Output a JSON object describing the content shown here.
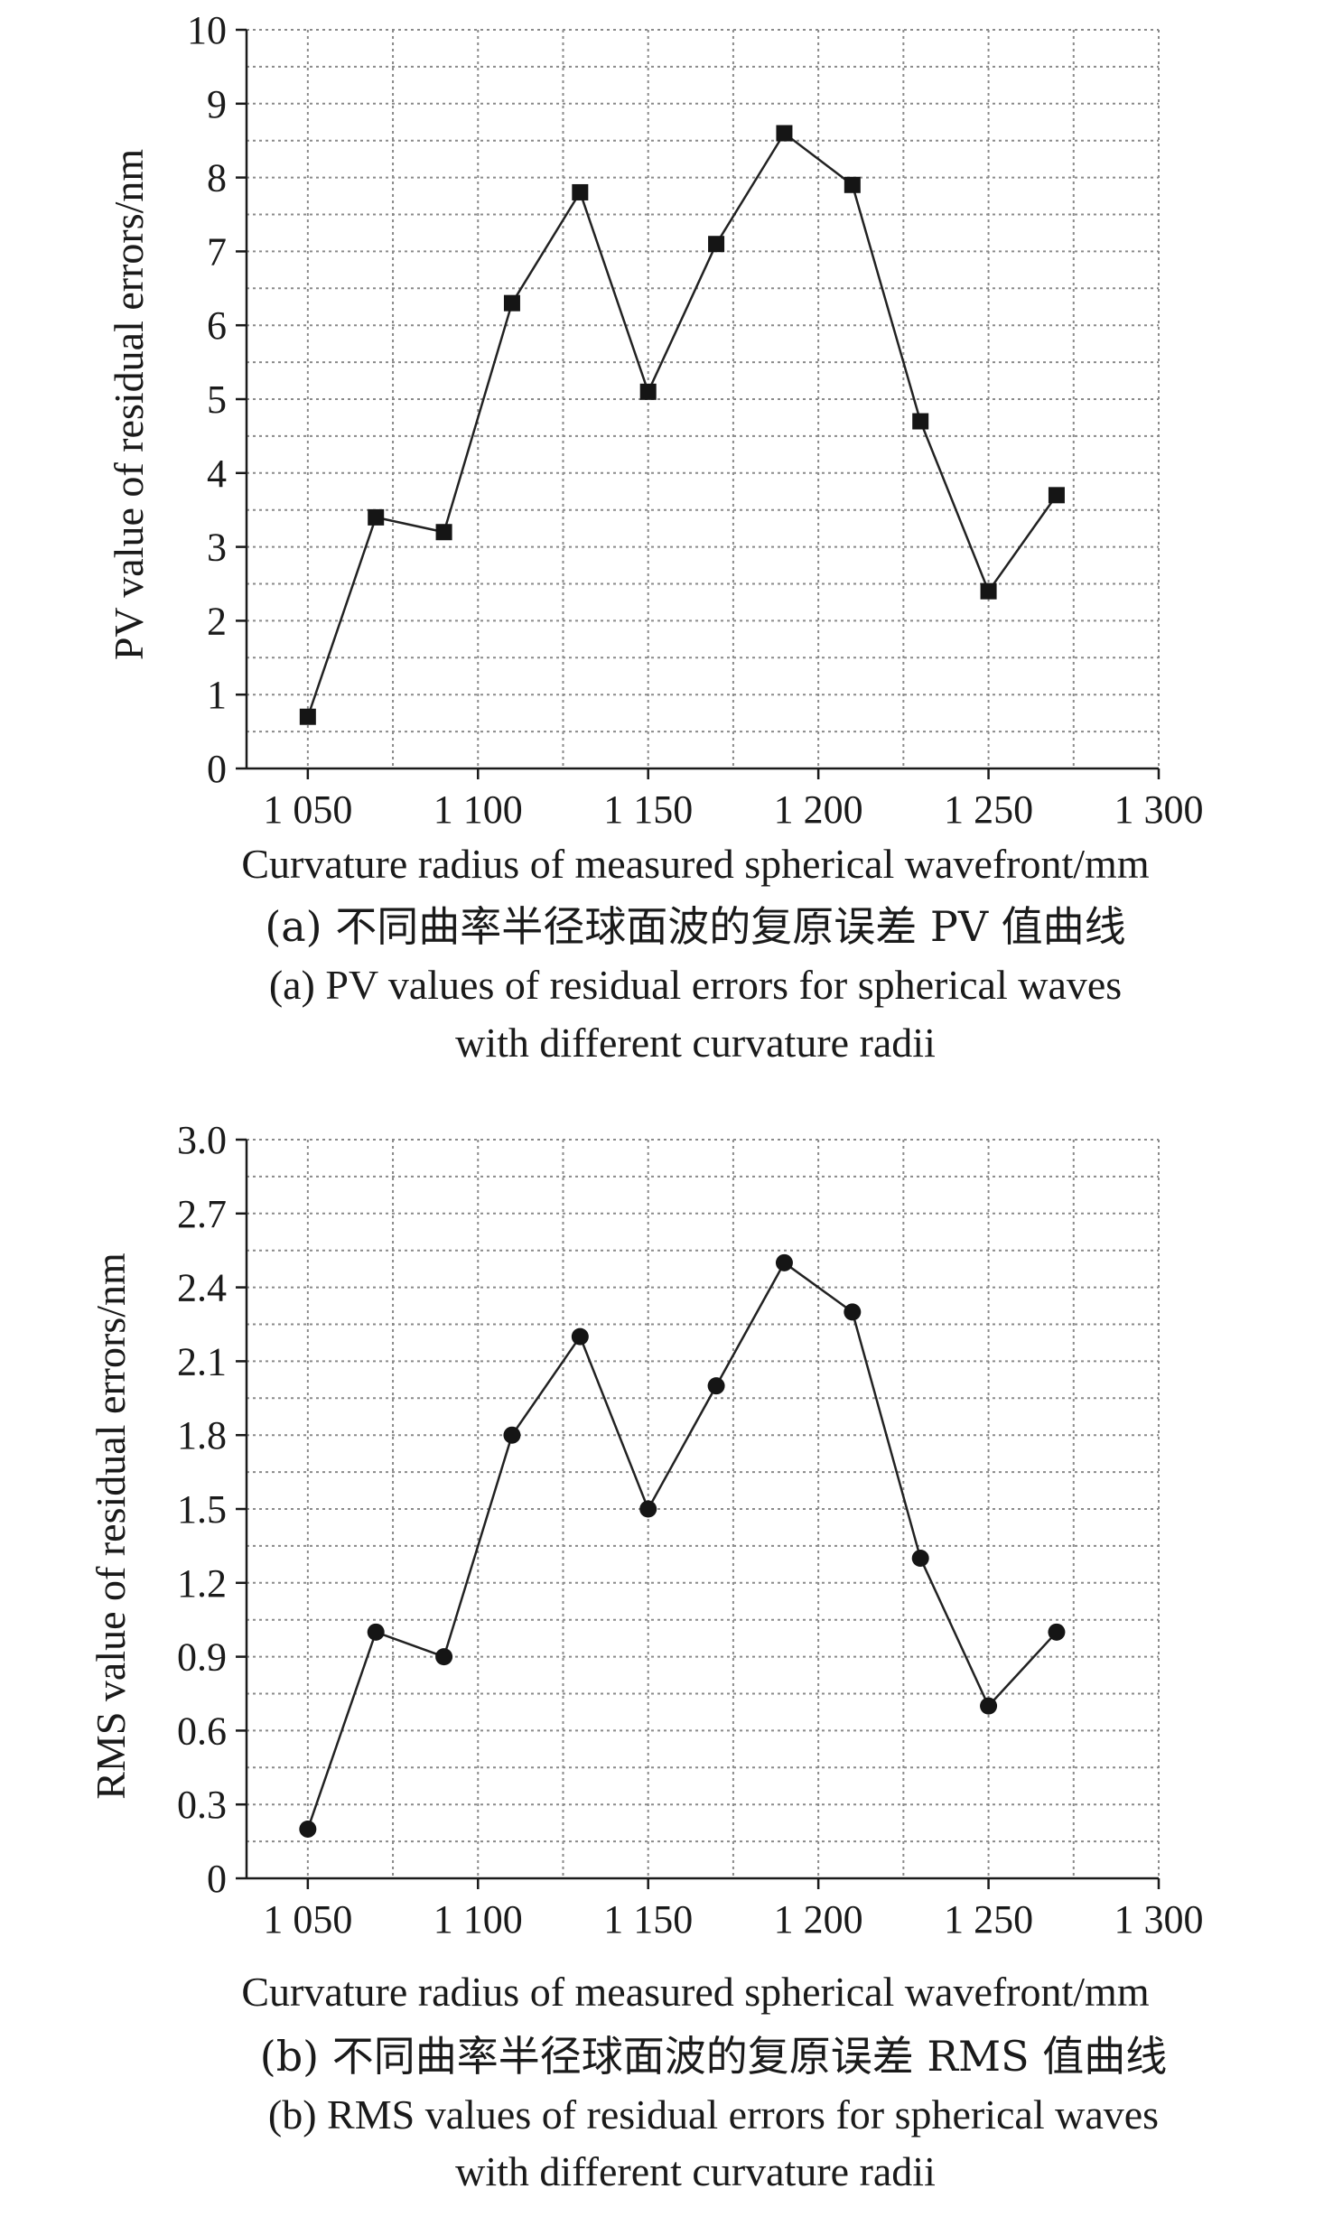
{
  "chart_data": [
    {
      "type": "line",
      "marker": "square",
      "x": [
        1050,
        1070,
        1090,
        1110,
        1130,
        1150,
        1170,
        1190,
        1210,
        1230,
        1250,
        1270
      ],
      "series": [
        {
          "values": [
            0.7,
            3.4,
            3.2,
            6.3,
            7.8,
            5.1,
            7.1,
            8.6,
            7.9,
            4.7,
            2.4,
            3.7
          ]
        }
      ],
      "xlim": [
        1032,
        1300
      ],
      "ylim": [
        0,
        10
      ],
      "xticks": [
        1050,
        1100,
        1150,
        1200,
        1250,
        1300
      ],
      "xtick_labels": [
        "1 050",
        "1 100",
        "1 150",
        "1 200",
        "1 250",
        "1 300"
      ],
      "yticks": [
        0,
        1,
        2,
        3,
        4,
        5,
        6,
        7,
        8,
        9,
        10
      ],
      "ytick_labels": [
        "0",
        "1",
        "2",
        "3",
        "4",
        "5",
        "6",
        "7",
        "8",
        "9",
        "10"
      ],
      "xlabel": "Curvature radius of measured spherical wavefront/mm",
      "ylabel": "PV value of residual errors/nm",
      "grid": true,
      "caption_zh": "(a) 不同曲率半径球面波的复原误差 PV 值曲线",
      "caption_en_line1": "(a) PV values of residual errors for spherical waves",
      "caption_en_line2": "with different curvature radii"
    },
    {
      "type": "line",
      "marker": "circle",
      "x": [
        1050,
        1070,
        1090,
        1110,
        1130,
        1150,
        1170,
        1190,
        1210,
        1230,
        1250,
        1270
      ],
      "series": [
        {
          "values": [
            0.2,
            1.0,
            0.9,
            1.8,
            2.2,
            1.5,
            2.0,
            2.5,
            2.3,
            1.3,
            0.7,
            1.0
          ]
        }
      ],
      "xlim": [
        1032,
        1300
      ],
      "ylim": [
        0,
        3.0
      ],
      "xticks": [
        1050,
        1100,
        1150,
        1200,
        1250,
        1300
      ],
      "xtick_labels": [
        "1 050",
        "1 100",
        "1 150",
        "1 200",
        "1 250",
        "1 300"
      ],
      "yticks": [
        0,
        0.3,
        0.6,
        0.9,
        1.2,
        1.5,
        1.8,
        2.1,
        2.4,
        2.7,
        3.0
      ],
      "ytick_labels": [
        "0",
        "0.3",
        "0.6",
        "0.9",
        "1.2",
        "1.5",
        "1.8",
        "2.1",
        "2.4",
        "2.7",
        "3.0"
      ],
      "xlabel": "Curvature radius of measured spherical wavefront/mm",
      "ylabel": "RMS value of residual errors/nm",
      "grid": true,
      "caption_zh": "(b) 不同曲率半径球面波的复原误差 RMS 值曲线",
      "caption_en_line1": "(b) RMS values of residual errors for spherical waves",
      "caption_en_line2": "with different curvature radii"
    }
  ]
}
